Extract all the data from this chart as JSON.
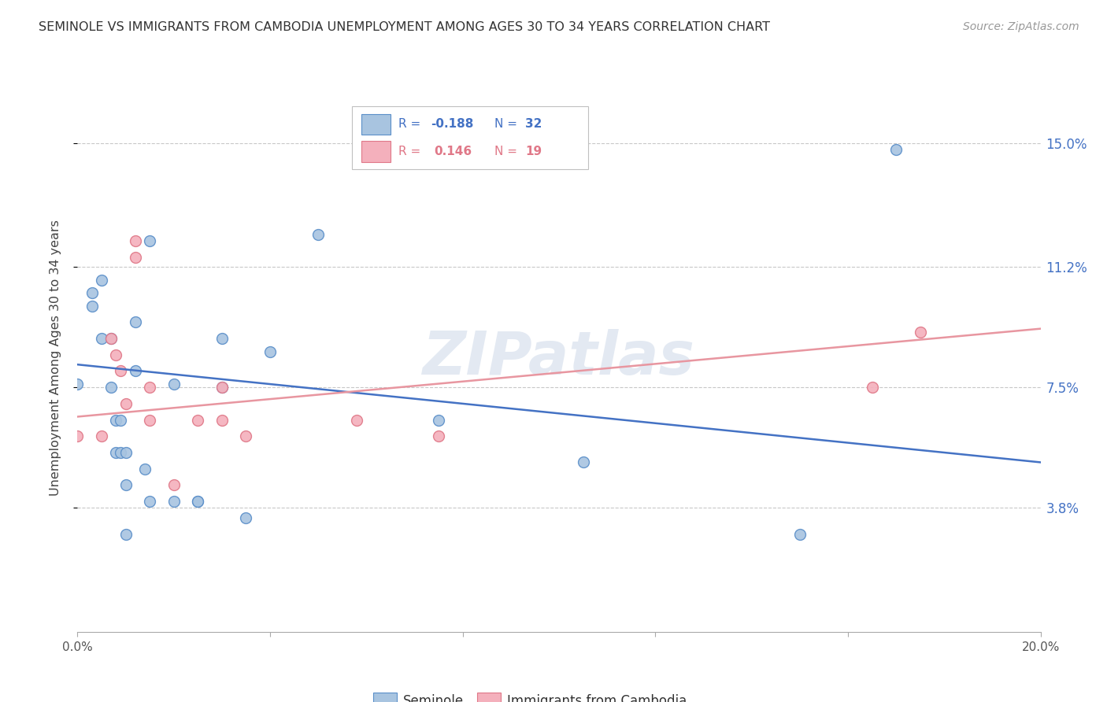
{
  "title": "SEMINOLE VS IMMIGRANTS FROM CAMBODIA UNEMPLOYMENT AMONG AGES 30 TO 34 YEARS CORRELATION CHART",
  "source": "Source: ZipAtlas.com",
  "ylabel": "Unemployment Among Ages 30 to 34 years",
  "ytick_labels": [
    "15.0%",
    "11.2%",
    "7.5%",
    "3.8%"
  ],
  "ytick_values": [
    0.15,
    0.112,
    0.075,
    0.038
  ],
  "xlim": [
    0.0,
    0.2
  ],
  "ylim": [
    0.0,
    0.168
  ],
  "seminole_color": "#a8c4e0",
  "cambodia_color": "#f4b0bc",
  "seminole_edge_color": "#5b8fc9",
  "cambodia_edge_color": "#e07888",
  "seminole_line_color": "#4472c4",
  "cambodia_line_color": "#e896a0",
  "watermark": "ZIPatlas",
  "seminole_r": "-0.188",
  "seminole_n": "32",
  "cambodia_r": "0.146",
  "cambodia_n": "19",
  "seminole_points_x": [
    0.0,
    0.003,
    0.003,
    0.005,
    0.005,
    0.007,
    0.007,
    0.008,
    0.008,
    0.009,
    0.009,
    0.01,
    0.01,
    0.01,
    0.012,
    0.012,
    0.014,
    0.015,
    0.015,
    0.02,
    0.02,
    0.025,
    0.025,
    0.03,
    0.03,
    0.035,
    0.04,
    0.05,
    0.075,
    0.105,
    0.15,
    0.17
  ],
  "seminole_points_y": [
    0.076,
    0.104,
    0.1,
    0.108,
    0.09,
    0.09,
    0.075,
    0.065,
    0.055,
    0.065,
    0.055,
    0.045,
    0.055,
    0.03,
    0.095,
    0.08,
    0.05,
    0.04,
    0.12,
    0.076,
    0.04,
    0.04,
    0.04,
    0.09,
    0.075,
    0.035,
    0.086,
    0.122,
    0.065,
    0.052,
    0.03,
    0.148
  ],
  "cambodia_points_x": [
    0.0,
    0.005,
    0.007,
    0.008,
    0.009,
    0.01,
    0.012,
    0.012,
    0.015,
    0.015,
    0.02,
    0.025,
    0.03,
    0.03,
    0.035,
    0.058,
    0.075,
    0.165,
    0.175
  ],
  "cambodia_points_y": [
    0.06,
    0.06,
    0.09,
    0.085,
    0.08,
    0.07,
    0.12,
    0.115,
    0.065,
    0.075,
    0.045,
    0.065,
    0.065,
    0.075,
    0.06,
    0.065,
    0.06,
    0.075,
    0.092
  ],
  "seminole_trend_x0": 0.0,
  "seminole_trend_x1": 0.2,
  "seminole_trend_y0": 0.082,
  "seminole_trend_y1": 0.052,
  "cambodia_trend_x0": 0.0,
  "cambodia_trend_x1": 0.2,
  "cambodia_trend_y0": 0.066,
  "cambodia_trend_y1": 0.093,
  "xtick_positions": [
    0.0,
    0.04,
    0.08,
    0.12,
    0.16,
    0.2
  ],
  "xtick_labels": [
    "0.0%",
    "",
    "",
    "",
    "",
    "20.0%"
  ],
  "bottom_legend_labels": [
    "Seminole",
    "Immigrants from Cambodia"
  ]
}
